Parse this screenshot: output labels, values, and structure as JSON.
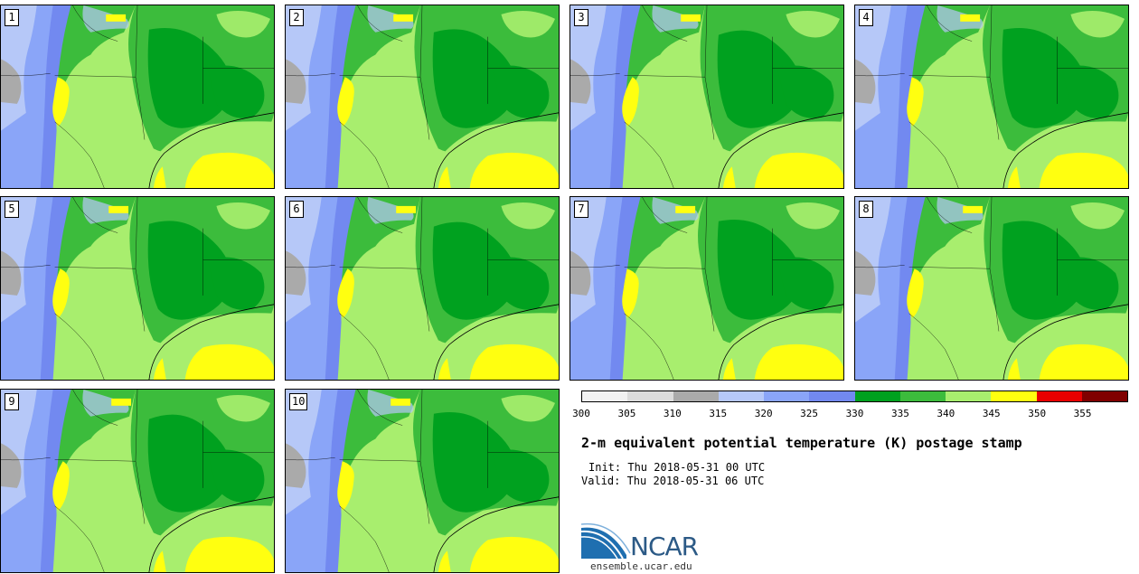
{
  "panels": [
    {
      "label": "1"
    },
    {
      "label": "2"
    },
    {
      "label": "3"
    },
    {
      "label": "4"
    },
    {
      "label": "5"
    },
    {
      "label": "6"
    },
    {
      "label": "7"
    },
    {
      "label": "8"
    },
    {
      "label": "9"
    },
    {
      "label": "10"
    }
  ],
  "colorbar": {
    "ticks": [
      "300",
      "305",
      "310",
      "315",
      "320",
      "325",
      "330",
      "335",
      "340",
      "345",
      "350",
      "355"
    ],
    "colors": [
      "#f2f2f2",
      "#dcdcdc",
      "#aaaaaa",
      "#b6c8f8",
      "#8aa5f8",
      "#7289f0",
      "#00a11f",
      "#3cbc3c",
      "#a8ee6e",
      "#ffff10",
      "#e80000",
      "#800000"
    ]
  },
  "title": "2-m equivalent potential temperature (K) postage stamp",
  "init": "Init: Thu 2018-05-31 00 UTC",
  "valid": "Valid: Thu 2018-05-31 06 UTC",
  "logo": {
    "text": "NCAR",
    "url": "ensemble.ucar.edu"
  }
}
